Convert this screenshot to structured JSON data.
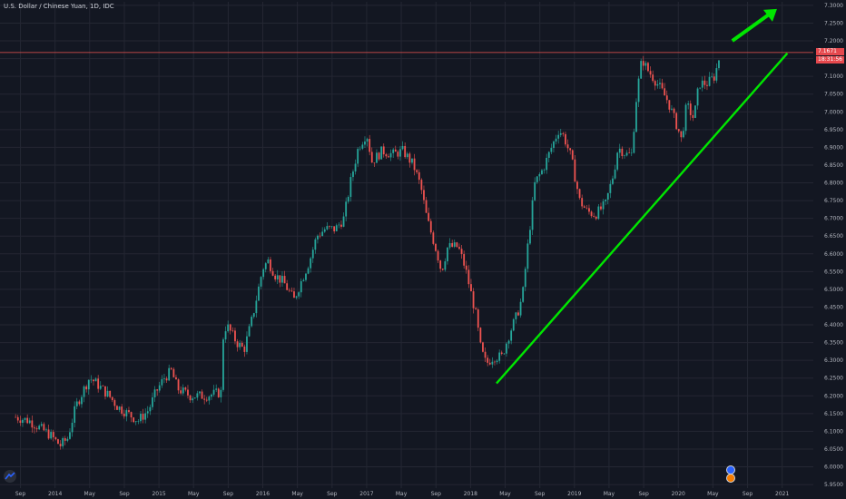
{
  "header": {
    "title": "U.S. Dollar / Chinese Yuan, 1D, IDC"
  },
  "price_badge": {
    "value": "7.1671",
    "countdown": "18:31:56",
    "color": "#e5484d"
  },
  "colors": {
    "background": "#131722",
    "grid": "#242733",
    "up": "#26a69a",
    "down": "#ef5350",
    "trendline": "#00e600",
    "axis_text": "#b2b5be"
  },
  "chart_data": {
    "type": "candlestick",
    "symbol": "U.S. Dollar / Chinese Yuan, 1D, IDC",
    "ylim": [
      5.94,
      7.31
    ],
    "y_ticks": [
      "7.3000",
      "7.2500",
      "7.2000",
      "7.1500",
      "7.1000",
      "7.0500",
      "7.0000",
      "6.9500",
      "6.9000",
      "6.8500",
      "6.8000",
      "6.7500",
      "6.7000",
      "6.6500",
      "6.6000",
      "6.5500",
      "6.5000",
      "6.4500",
      "6.4000",
      "6.3500",
      "6.3000",
      "6.2500",
      "6.2000",
      "6.1500",
      "6.1000",
      "6.0500",
      "6.0000",
      "5.9500"
    ],
    "x_ticks": [
      "Sep",
      "2014",
      "May",
      "Sep",
      "2015",
      "May",
      "Sep",
      "2016",
      "May",
      "Sep",
      "2017",
      "May",
      "Sep",
      "2018",
      "May",
      "Sep",
      "2019",
      "May",
      "Sep",
      "2020",
      "May",
      "Sep",
      "2021"
    ],
    "price_path": [
      [
        2013.62,
        6.14
      ],
      [
        2013.75,
        6.13
      ],
      [
        2013.85,
        6.11
      ],
      [
        2013.95,
        6.09
      ],
      [
        2014.05,
        6.06
      ],
      [
        2014.12,
        6.08
      ],
      [
        2014.2,
        6.17
      ],
      [
        2014.28,
        6.22
      ],
      [
        2014.33,
        6.25
      ],
      [
        2014.38,
        6.24
      ],
      [
        2014.45,
        6.22
      ],
      [
        2014.52,
        6.2
      ],
      [
        2014.6,
        6.17
      ],
      [
        2014.7,
        6.15
      ],
      [
        2014.8,
        6.13
      ],
      [
        2014.9,
        6.16
      ],
      [
        2014.97,
        6.21
      ],
      [
        2015.05,
        6.25
      ],
      [
        2015.12,
        6.27
      ],
      [
        2015.18,
        6.22
      ],
      [
        2015.3,
        6.2
      ],
      [
        2015.45,
        6.2
      ],
      [
        2015.6,
        6.21
      ],
      [
        2015.62,
        6.37
      ],
      [
        2015.65,
        6.4
      ],
      [
        2015.75,
        6.35
      ],
      [
        2015.82,
        6.33
      ],
      [
        2015.9,
        6.42
      ],
      [
        2016.0,
        6.56
      ],
      [
        2016.05,
        6.58
      ],
      [
        2016.12,
        6.54
      ],
      [
        2016.2,
        6.52
      ],
      [
        2016.3,
        6.47
      ],
      [
        2016.38,
        6.53
      ],
      [
        2016.45,
        6.58
      ],
      [
        2016.52,
        6.65
      ],
      [
        2016.6,
        6.67
      ],
      [
        2016.7,
        6.67
      ],
      [
        2016.78,
        6.7
      ],
      [
        2016.85,
        6.81
      ],
      [
        2016.92,
        6.9
      ],
      [
        2017.0,
        6.94
      ],
      [
        2017.05,
        6.86
      ],
      [
        2017.15,
        6.89
      ],
      [
        2017.25,
        6.88
      ],
      [
        2017.35,
        6.89
      ],
      [
        2017.45,
        6.85
      ],
      [
        2017.52,
        6.79
      ],
      [
        2017.58,
        6.7
      ],
      [
        2017.68,
        6.6
      ],
      [
        2017.72,
        6.55
      ],
      [
        2017.78,
        6.62
      ],
      [
        2017.88,
        6.62
      ],
      [
        2017.95,
        6.56
      ],
      [
        2018.05,
        6.43
      ],
      [
        2018.1,
        6.33
      ],
      [
        2018.15,
        6.29
      ],
      [
        2018.22,
        6.31
      ],
      [
        2018.3,
        6.31
      ],
      [
        2018.38,
        6.38
      ],
      [
        2018.45,
        6.43
      ],
      [
        2018.5,
        6.48
      ],
      [
        2018.55,
        6.62
      ],
      [
        2018.62,
        6.8
      ],
      [
        2018.7,
        6.84
      ],
      [
        2018.78,
        6.9
      ],
      [
        2018.85,
        6.95
      ],
      [
        2018.9,
        6.93
      ],
      [
        2018.97,
        6.87
      ],
      [
        2019.05,
        6.75
      ],
      [
        2019.12,
        6.72
      ],
      [
        2019.2,
        6.71
      ],
      [
        2019.3,
        6.74
      ],
      [
        2019.38,
        6.83
      ],
      [
        2019.42,
        6.9
      ],
      [
        2019.5,
        6.88
      ],
      [
        2019.55,
        6.88
      ],
      [
        2019.6,
        7.05
      ],
      [
        2019.65,
        7.15
      ],
      [
        2019.7,
        7.12
      ],
      [
        2019.75,
        7.1
      ],
      [
        2019.82,
        7.07
      ],
      [
        2019.9,
        7.03
      ],
      [
        2019.95,
        6.99
      ],
      [
        2020.0,
        6.95
      ],
      [
        2020.03,
        6.92
      ],
      [
        2020.08,
        7.02
      ],
      [
        2020.15,
        6.98
      ],
      [
        2020.2,
        7.08
      ],
      [
        2020.28,
        7.08
      ],
      [
        2020.35,
        7.1
      ],
      [
        2020.4,
        7.16
      ]
    ],
    "trendline": {
      "from": [
        2018.25,
        6.235
      ],
      "to": [
        2021.05,
        7.165
      ]
    },
    "arrow": {
      "from": [
        2020.52,
        7.2
      ],
      "to": [
        2020.95,
        7.29
      ]
    },
    "horizontal_line": 7.1671
  }
}
